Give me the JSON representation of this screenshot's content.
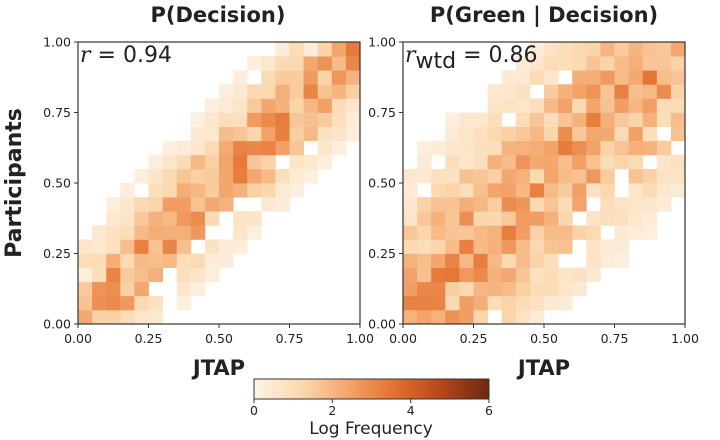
{
  "chart_data": [
    {
      "type": "heatmap",
      "title": "P(Decision)",
      "xlabel": "JTAP",
      "ylabel": "Participants",
      "xlim": [
        0,
        1
      ],
      "ylim": [
        0,
        1
      ],
      "bins": 20,
      "xticks": [
        "0.00",
        "0.25",
        "0.50",
        "0.75",
        "1.00"
      ],
      "yticks": [
        "0.00",
        "0.25",
        "0.50",
        "0.75",
        "1.00"
      ],
      "annotation": {
        "symbol": "r",
        "subscript": "",
        "text": " = 0.94"
      },
      "correlation": 0.94,
      "pattern": {
        "spread": 0.14,
        "density_floor": 0.05,
        "hot_corners": [
          [
            0,
            0
          ],
          [
            1,
            1
          ]
        ],
        "hot_value": 4.6
      }
    },
    {
      "type": "heatmap",
      "title": "P(Green | Decision)",
      "xlabel": "JTAP",
      "ylabel": "",
      "xlim": [
        0,
        1
      ],
      "ylim": [
        0,
        1
      ],
      "bins": 20,
      "xticks": [
        "0.00",
        "0.25",
        "0.50",
        "0.75",
        "1.00"
      ],
      "yticks": [
        "0.00",
        "0.25",
        "0.50",
        "0.75",
        "1.00"
      ],
      "annotation": {
        "symbol": "r",
        "subscript": "wtd",
        "text": " = 0.86"
      },
      "correlation": 0.86,
      "pattern": {
        "spread": 0.26,
        "density_floor": 0.12,
        "hot_corners": [
          [
            0,
            0
          ],
          [
            1,
            1
          ]
        ],
        "hot_value": 4.2
      }
    }
  ],
  "colorbar": {
    "label": "Log Frequency",
    "min": 0,
    "max": 6,
    "ticks": [
      "0",
      "2",
      "4",
      "6"
    ],
    "stops": [
      "#fdf3e7",
      "#fbd9b0",
      "#f3a56c",
      "#e3702e",
      "#b4461a",
      "#6e2710"
    ]
  }
}
